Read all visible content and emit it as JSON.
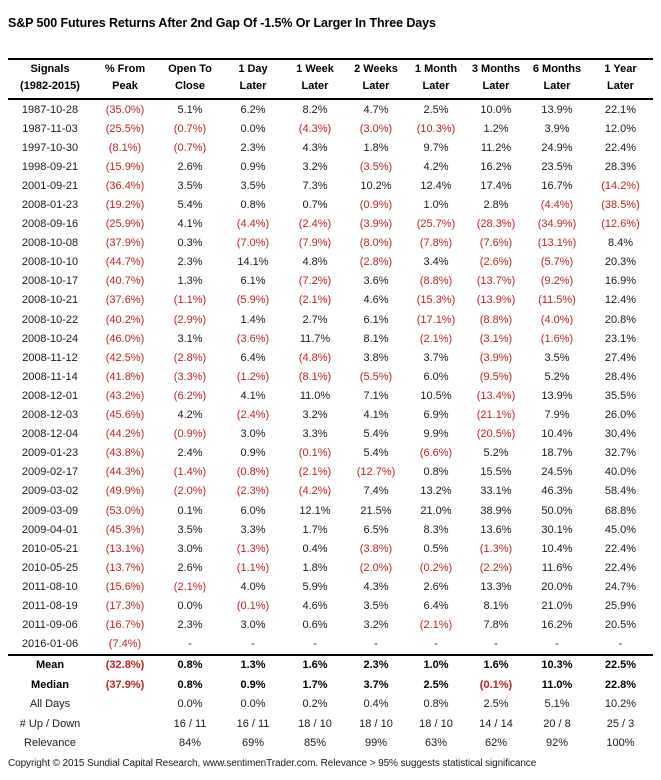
{
  "colors": {
    "negative": "#c22222",
    "text": "#1a1a1a",
    "border": "#000000"
  },
  "chart_data": {
    "type": "table",
    "title": "S&P 500 Futures Returns After 2nd Gap Of -1.5% Or Larger In Three Days",
    "columns": [
      [
        "Signals",
        "(1982-2015)"
      ],
      [
        "% From",
        "Peak"
      ],
      [
        "Open To",
        "Close"
      ],
      [
        "1 Day",
        "Later"
      ],
      [
        "1 Week",
        "Later"
      ],
      [
        "2 Weeks",
        "Later"
      ],
      [
        "1 Month",
        "Later"
      ],
      [
        "3 Months",
        "Later"
      ],
      [
        "6 Months",
        "Later"
      ],
      [
        "1 Year",
        "Later"
      ]
    ],
    "rows": [
      [
        "1987-10-28",
        "(35.0%)",
        "5.1%",
        "6.2%",
        "8.2%",
        "4.7%",
        "2.5%",
        "10.0%",
        "13.9%",
        "22.1%"
      ],
      [
        "1987-11-03",
        "(25.5%)",
        "(0.7%)",
        "0.0%",
        "(4.3%)",
        "(3.0%)",
        "(10.3%)",
        "1.2%",
        "3.9%",
        "12.0%"
      ],
      [
        "1997-10-30",
        "(8.1%)",
        "(0.7%)",
        "2.3%",
        "4.3%",
        "1.8%",
        "9.7%",
        "11.2%",
        "24.9%",
        "22.4%"
      ],
      [
        "1998-09-21",
        "(15.9%)",
        "2.6%",
        "0.9%",
        "3.2%",
        "(3.5%)",
        "4.2%",
        "16.2%",
        "23.5%",
        "28.3%"
      ],
      [
        "2001-09-21",
        "(36.4%)",
        "3.5%",
        "3.5%",
        "7.3%",
        "10.2%",
        "12.4%",
        "17.4%",
        "16.7%",
        "(14.2%)"
      ],
      [
        "2008-01-23",
        "(19.2%)",
        "5.4%",
        "0.8%",
        "0.7%",
        "(0.9%)",
        "1.0%",
        "2.8%",
        "(4.4%)",
        "(38.5%)"
      ],
      [
        "2008-09-16",
        "(25.9%)",
        "4.1%",
        "(4.4%)",
        "(2.4%)",
        "(3.9%)",
        "(25.7%)",
        "(28.3%)",
        "(34.9%)",
        "(12.6%)"
      ],
      [
        "2008-10-08",
        "(37.9%)",
        "0.3%",
        "(7.0%)",
        "(7.9%)",
        "(8.0%)",
        "(7.8%)",
        "(7.6%)",
        "(13.1%)",
        "8.4%"
      ],
      [
        "2008-10-10",
        "(44.7%)",
        "2.3%",
        "14.1%",
        "4.8%",
        "(2.8%)",
        "3.4%",
        "(2.6%)",
        "(5.7%)",
        "20.3%"
      ],
      [
        "2008-10-17",
        "(40.7%)",
        "1.3%",
        "6.1%",
        "(7.2%)",
        "3.6%",
        "(8.8%)",
        "(13.7%)",
        "(9.2%)",
        "16.9%"
      ],
      [
        "2008-10-21",
        "(37.6%)",
        "(1.1%)",
        "(5.9%)",
        "(2.1%)",
        "4.6%",
        "(15.3%)",
        "(13.9%)",
        "(11.5%)",
        "12.4%"
      ],
      [
        "2008-10-22",
        "(40.2%)",
        "(2.9%)",
        "1.4%",
        "2.7%",
        "6.1%",
        "(17.1%)",
        "(8.8%)",
        "(4.0%)",
        "20.8%"
      ],
      [
        "2008-10-24",
        "(46.0%)",
        "3.1%",
        "(3.6%)",
        "11.7%",
        "8.1%",
        "(2.1%)",
        "(3.1%)",
        "(1.6%)",
        "23.1%"
      ],
      [
        "2008-11-12",
        "(42.5%)",
        "(2.8%)",
        "6.4%",
        "(4.8%)",
        "3.8%",
        "3.7%",
        "(3.9%)",
        "3.5%",
        "27.4%"
      ],
      [
        "2008-11-14",
        "(41.8%)",
        "(3.3%)",
        "(1.2%)",
        "(8.1%)",
        "(5.5%)",
        "6.0%",
        "(9.5%)",
        "5.2%",
        "28.4%"
      ],
      [
        "2008-12-01",
        "(43.2%)",
        "(6.2%)",
        "4.1%",
        "11.0%",
        "7.1%",
        "10.5%",
        "(13.4%)",
        "13.9%",
        "35.5%"
      ],
      [
        "2008-12-03",
        "(45.6%)",
        "4.2%",
        "(2.4%)",
        "3.2%",
        "4.1%",
        "6.9%",
        "(21.1%)",
        "7.9%",
        "26.0%"
      ],
      [
        "2008-12-04",
        "(44.2%)",
        "(0.9%)",
        "3.0%",
        "3.3%",
        "5.4%",
        "9.9%",
        "(20.5%)",
        "10.4%",
        "30.4%"
      ],
      [
        "2009-01-23",
        "(43.8%)",
        "2.4%",
        "0.9%",
        "(0.1%)",
        "5.4%",
        "(6.6%)",
        "5.2%",
        "18.7%",
        "32.7%"
      ],
      [
        "2009-02-17",
        "(44.3%)",
        "(1.4%)",
        "(0.8%)",
        "(2.1%)",
        "(12.7%)",
        "0.8%",
        "15.5%",
        "24.5%",
        "40.0%"
      ],
      [
        "2009-03-02",
        "(49.9%)",
        "(2.0%)",
        "(2.3%)",
        "(4.2%)",
        "7.4%",
        "13.2%",
        "33.1%",
        "46.3%",
        "58.4%"
      ],
      [
        "2009-03-09",
        "(53.0%)",
        "0.1%",
        "6.0%",
        "12.1%",
        "21.5%",
        "21.0%",
        "38.9%",
        "50.0%",
        "68.8%"
      ],
      [
        "2009-04-01",
        "(45.3%)",
        "3.5%",
        "3.3%",
        "1.7%",
        "6.5%",
        "8.3%",
        "13.6%",
        "30.1%",
        "45.0%"
      ],
      [
        "2010-05-21",
        "(13.1%)",
        "3.0%",
        "(1.3%)",
        "0.4%",
        "(3.8%)",
        "0.5%",
        "(1.3%)",
        "10.4%",
        "22.4%"
      ],
      [
        "2010-05-25",
        "(13.7%)",
        "2.6%",
        "(1.1%)",
        "1.8%",
        "(2.0%)",
        "(0.2%)",
        "(2.2%)",
        "11.6%",
        "22.4%"
      ],
      [
        "2011-08-10",
        "(15.6%)",
        "(2.1%)",
        "4.0%",
        "5.9%",
        "4.3%",
        "2.6%",
        "13.3%",
        "20.0%",
        "24.7%"
      ],
      [
        "2011-08-19",
        "(17.3%)",
        "0.0%",
        "(0.1%)",
        "4.6%",
        "3.5%",
        "6.4%",
        "8.1%",
        "21.0%",
        "25.9%"
      ],
      [
        "2011-09-06",
        "(16.7%)",
        "2.3%",
        "3.0%",
        "0.6%",
        "3.2%",
        "(2.1%)",
        "7.8%",
        "16.2%",
        "20.5%"
      ],
      [
        "2016-01-06",
        "(7.4%)",
        "-",
        "-",
        "-",
        "-",
        "-",
        "-",
        "-",
        "-"
      ]
    ],
    "summary_rows": [
      {
        "bold": true,
        "cells": [
          "Mean",
          "(32.8%)",
          "0.8%",
          "1.3%",
          "1.6%",
          "2.3%",
          "1.0%",
          "1.6%",
          "10.3%",
          "22.5%"
        ]
      },
      {
        "bold": true,
        "cells": [
          "Median",
          "(37.9%)",
          "0.8%",
          "0.9%",
          "1.7%",
          "3.7%",
          "2.5%",
          "(0.1%)",
          "11.0%",
          "22.8%"
        ]
      },
      {
        "bold": false,
        "cells": [
          "All Days",
          "",
          "0.0%",
          "0.0%",
          "0.2%",
          "0.4%",
          "0.8%",
          "2.5%",
          "5.1%",
          "10.2%"
        ]
      },
      {
        "bold": false,
        "cells": [
          "# Up / Down",
          "",
          "16 / 11",
          "16 / 11",
          "18 / 10",
          "18 / 10",
          "18 / 10",
          "14 / 14",
          "20 / 8",
          "25 / 3"
        ]
      },
      {
        "bold": false,
        "cells": [
          "Relevance",
          "",
          "84%",
          "69%",
          "85%",
          "99%",
          "63%",
          "62%",
          "92%",
          "100%"
        ]
      }
    ],
    "footer": "Copyright © 2015 Sundial Capital Research, www.sentimenTrader.com. Relevance > 95% suggests statistical significance"
  }
}
